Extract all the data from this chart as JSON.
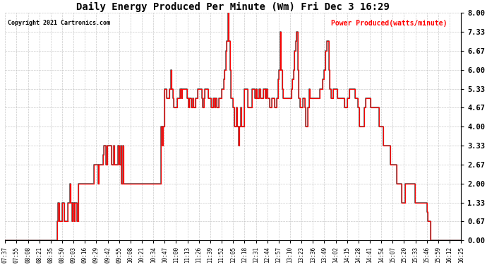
{
  "title": "Daily Energy Produced Per Minute (Wm) Fri Dec 3 16:29",
  "copyright": "Copyright 2021 Cartronics.com",
  "legend_label": "Power Produced(watts/minute)",
  "ylim": [
    0.0,
    8.0
  ],
  "yticks": [
    0.0,
    0.67,
    1.33,
    2.0,
    2.67,
    3.33,
    4.0,
    4.67,
    5.33,
    6.0,
    6.67,
    7.33,
    8.0
  ],
  "background_color": "#ffffff",
  "grid_color": "#bbbbbb",
  "line_color_red": "#ff0000",
  "line_color_dark": "#444444",
  "xtick_labels": [
    "07:37",
    "07:55",
    "08:08",
    "08:21",
    "08:35",
    "08:50",
    "09:03",
    "09:16",
    "09:29",
    "09:42",
    "09:55",
    "10:08",
    "10:21",
    "10:34",
    "10:47",
    "11:00",
    "11:13",
    "11:26",
    "11:39",
    "11:52",
    "12:05",
    "12:18",
    "12:31",
    "12:44",
    "12:57",
    "13:10",
    "13:23",
    "13:36",
    "13:49",
    "14:02",
    "14:15",
    "14:28",
    "14:41",
    "14:54",
    "15:07",
    "15:20",
    "15:33",
    "15:46",
    "15:59",
    "16:12",
    "16:25"
  ],
  "data_y": [
    0.0,
    0.0,
    0.0,
    0.0,
    0.0,
    0.0,
    0.0,
    0.0,
    0.0,
    0.0,
    0.0,
    0.0,
    0.0,
    0.0,
    0.0,
    0.0,
    0.0,
    0.0,
    0.0,
    0.0,
    0.0,
    0.0,
    0.0,
    0.0,
    0.0,
    0.0,
    0.0,
    0.0,
    0.0,
    0.0,
    0.0,
    0.0,
    0.0,
    0.0,
    0.0,
    0.0,
    0.0,
    0.0,
    0.0,
    0.0,
    0.0,
    0.0,
    0.0,
    0.0,
    0.0,
    0.0,
    0.0,
    0.0,
    0.0,
    0.0,
    0.67,
    1.33,
    0.67,
    0.67,
    0.67,
    1.33,
    1.33,
    0.67,
    0.67,
    0.67,
    1.33,
    1.33,
    2.0,
    1.33,
    0.67,
    1.33,
    0.67,
    1.33,
    1.33,
    0.67,
    2.0,
    2.0,
    2.0,
    2.0,
    2.0,
    2.0,
    2.0,
    2.0,
    2.0,
    2.0,
    2.0,
    2.0,
    2.0,
    2.0,
    2.0,
    2.67,
    2.67,
    2.67,
    2.67,
    2.0,
    2.67,
    2.67,
    2.67,
    2.67,
    3.0,
    3.33,
    3.33,
    2.67,
    3.33,
    3.33,
    3.33,
    3.33,
    2.67,
    2.67,
    3.33,
    2.67,
    2.67,
    2.67,
    3.33,
    3.33,
    2.67,
    3.33,
    2.0,
    3.33,
    2.0,
    2.0,
    2.0,
    2.0,
    2.0,
    2.0,
    2.0,
    2.0,
    2.0,
    2.0,
    2.0,
    2.0,
    2.0,
    2.0,
    2.0,
    2.0,
    2.0,
    2.0,
    2.0,
    2.0,
    2.0,
    2.0,
    2.0,
    2.0,
    2.0,
    2.0,
    2.0,
    2.0,
    2.0,
    2.0,
    2.0,
    2.0,
    2.0,
    2.0,
    2.0,
    2.0,
    4.0,
    3.33,
    4.0,
    5.33,
    5.33,
    5.0,
    5.0,
    5.0,
    5.33,
    6.0,
    5.33,
    5.0,
    4.67,
    4.67,
    4.67,
    5.0,
    5.0,
    5.0,
    5.33,
    5.0,
    5.33,
    5.33,
    5.33,
    5.33,
    5.33,
    5.0,
    4.67,
    5.0,
    5.0,
    4.67,
    5.0,
    4.67,
    4.67,
    5.0,
    5.0,
    5.33,
    5.33,
    5.33,
    5.33,
    5.0,
    4.67,
    5.0,
    5.33,
    5.33,
    5.33,
    5.0,
    5.0,
    5.0,
    4.67,
    4.67,
    5.0,
    4.67,
    5.0,
    4.67,
    4.67,
    5.0,
    5.0,
    5.0,
    5.33,
    5.33,
    5.67,
    6.0,
    6.67,
    7.0,
    8.0,
    7.0,
    6.0,
    5.0,
    5.0,
    4.67,
    4.0,
    4.0,
    4.67,
    4.0,
    3.33,
    4.0,
    4.67,
    4.0,
    4.0,
    4.0,
    5.33,
    5.33,
    5.33,
    4.67,
    4.67,
    4.67,
    4.67,
    5.33,
    5.33,
    5.33,
    5.0,
    5.33,
    5.0,
    5.0,
    5.33,
    5.0,
    5.0,
    5.0,
    5.33,
    5.33,
    5.0,
    5.33,
    5.0,
    5.0,
    4.67,
    4.67,
    5.0,
    5.0,
    5.0,
    4.67,
    4.67,
    5.0,
    5.67,
    6.0,
    7.33,
    6.0,
    5.33,
    5.0,
    5.0,
    5.0,
    5.0,
    5.0,
    5.0,
    5.0,
    5.0,
    5.33,
    5.67,
    6.0,
    6.67,
    7.0,
    7.33,
    6.0,
    5.0,
    4.67,
    4.67,
    4.67,
    5.0,
    5.0,
    4.67,
    4.0,
    4.0,
    4.67,
    5.33,
    5.0,
    5.0,
    5.0,
    5.0,
    5.0,
    5.0,
    5.0,
    5.0,
    5.0,
    5.33,
    5.33,
    5.33,
    5.67,
    6.0,
    6.0,
    6.67,
    7.0,
    7.0,
    6.0,
    5.33,
    5.0,
    5.0,
    5.33,
    5.33,
    5.33,
    5.33,
    5.0,
    5.0,
    5.0,
    5.0,
    5.0,
    5.0,
    5.0,
    4.67,
    4.67,
    4.67,
    5.0,
    5.0,
    5.33,
    5.33,
    5.33,
    5.33,
    5.33,
    5.0,
    5.0,
    5.0,
    4.67,
    4.0,
    4.0,
    4.0,
    4.0,
    4.0,
    4.67,
    5.0,
    5.0,
    5.0,
    5.0,
    5.0,
    4.67,
    4.67,
    4.67,
    4.67,
    4.67,
    4.67,
    4.67,
    4.67,
    4.0,
    4.0,
    4.0,
    4.0,
    3.33,
    3.33,
    3.33,
    3.33,
    3.33,
    3.33,
    3.33,
    2.67,
    2.67,
    2.67,
    2.67,
    2.67,
    2.67,
    2.0,
    2.0,
    2.0,
    2.0,
    2.0,
    1.33,
    1.33,
    1.33,
    2.0,
    2.0,
    2.0,
    2.0,
    2.0,
    2.0,
    2.0,
    2.0,
    2.0,
    2.0,
    1.33,
    1.33,
    1.33,
    1.33,
    1.33,
    1.33,
    1.33,
    1.33,
    1.33,
    1.33,
    1.33,
    1.0,
    0.67,
    0.67,
    0.67,
    0.0,
    0.0,
    0.0,
    0.0,
    0.0,
    0.0,
    0.0,
    0.0,
    0.0,
    0.0,
    0.0,
    0.0,
    0.0,
    0.0,
    0.0,
    0.0,
    0.0,
    0.0,
    0.0,
    0.0,
    0.0,
    0.0,
    0.0,
    0.0,
    0.0,
    0.0,
    0.0,
    0.0,
    0.0,
    0.0
  ]
}
